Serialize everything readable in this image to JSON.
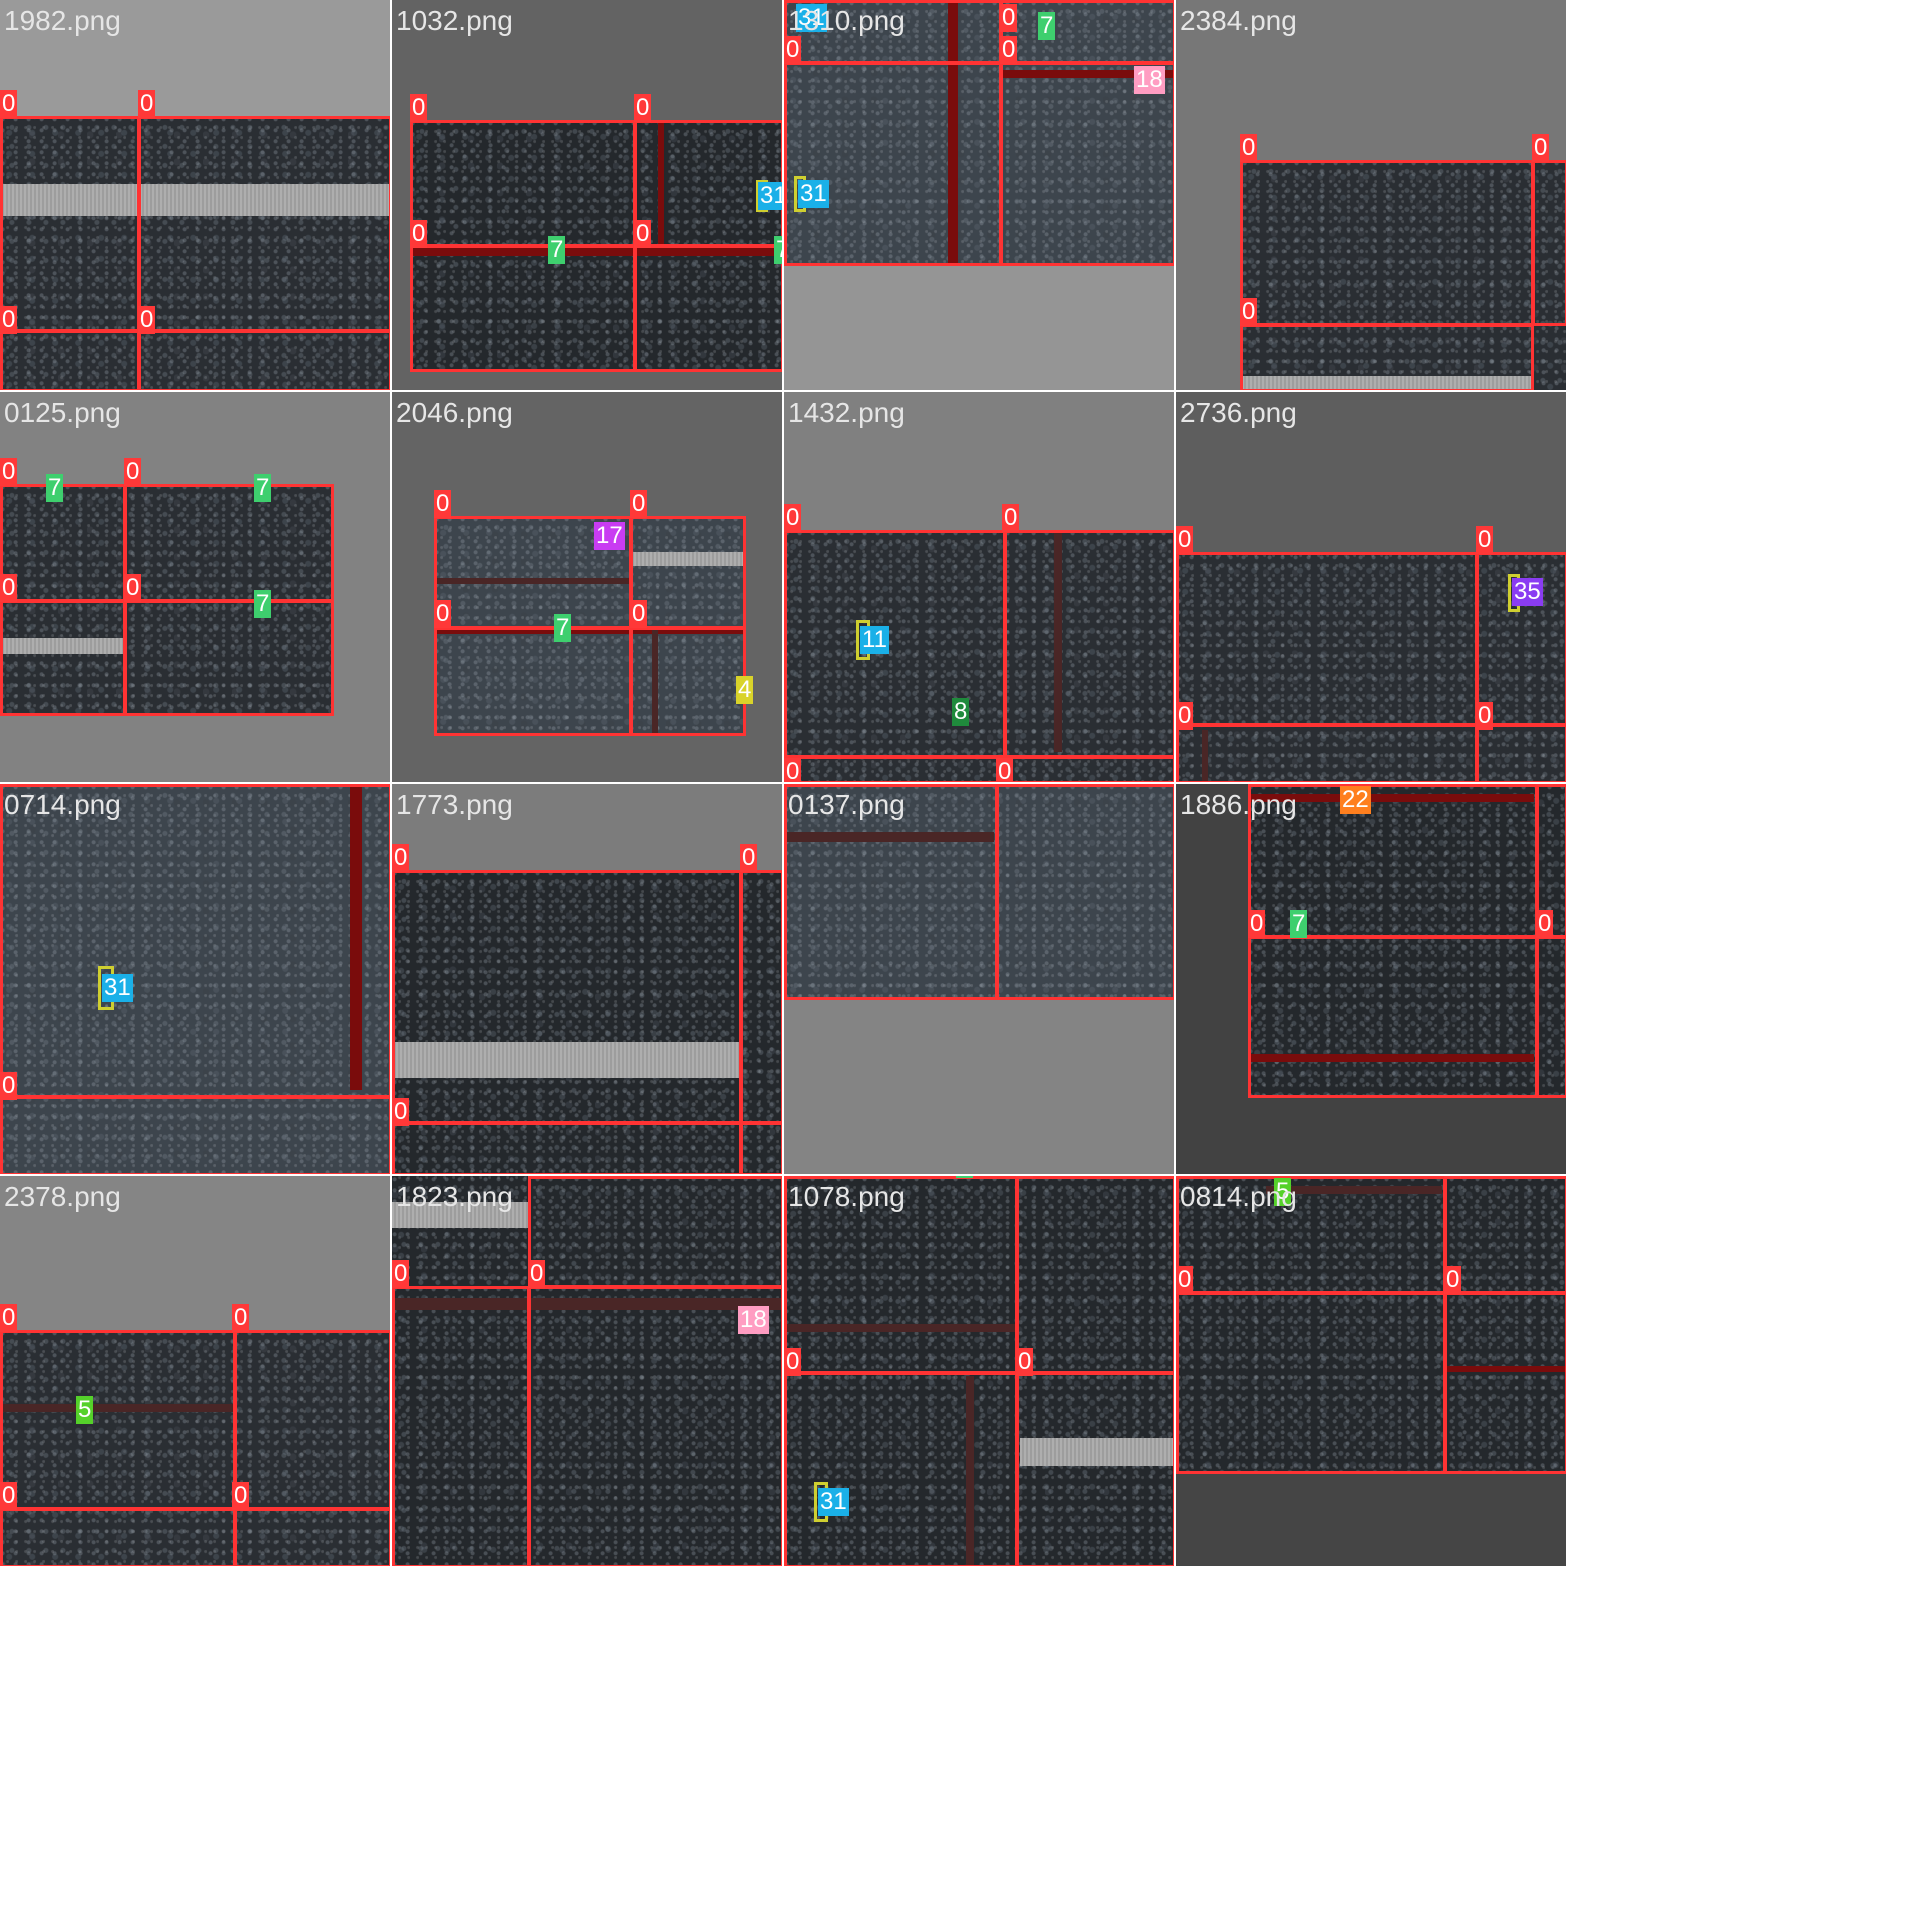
{
  "tiles": [
    {
      "filename": "1982.png"
    },
    {
      "filename": "1032.png"
    },
    {
      "filename": "1310.png"
    },
    {
      "filename": "2384.png"
    },
    {
      "filename": "0125.png"
    },
    {
      "filename": "2046.png"
    },
    {
      "filename": "1432.png"
    },
    {
      "filename": "2736.png"
    },
    {
      "filename": "0714.png"
    },
    {
      "filename": "1773.png"
    },
    {
      "filename": "0137.png"
    },
    {
      "filename": "1886.png"
    },
    {
      "filename": "2378.png"
    },
    {
      "filename": "1823.png"
    },
    {
      "filename": "1078.png"
    },
    {
      "filename": "0814.png"
    }
  ],
  "labels": {
    "c0": "0",
    "c4": "4",
    "c5": "5",
    "c7": "7",
    "c8": "8",
    "c11": "11",
    "c17": "17",
    "c18": "18",
    "c22": "22",
    "c31": "31",
    "c35": "35"
  },
  "colors": {
    "box_class_0": "#ff3333",
    "class_7": "#3ecf6e",
    "class_31": "#1ab0e8",
    "class_18": "#ff9dc2",
    "class_17": "#c93cf2",
    "class_4": "#d9d32a",
    "class_8": "#1f8a3c",
    "class_35": "#8a3cf2",
    "class_22": "#ff7f1e",
    "class_5": "#55d12a"
  }
}
